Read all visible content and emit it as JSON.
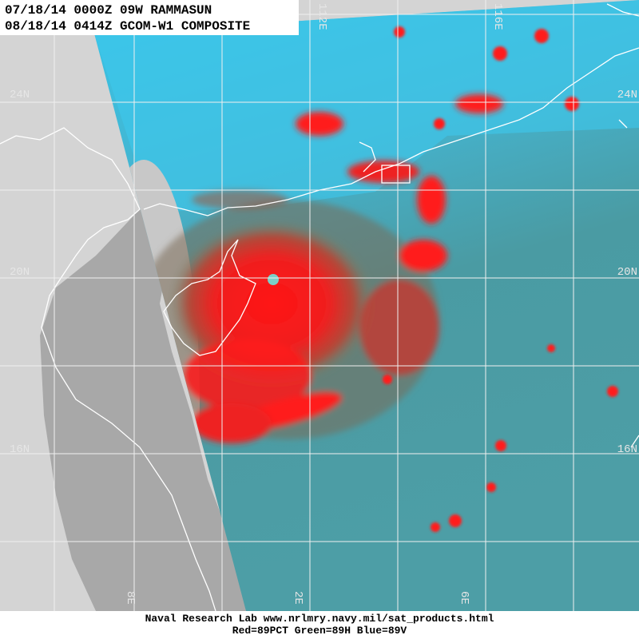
{
  "header": {
    "lines": [
      "07/18/14 0000Z 09W RAMMASUN",
      "08/18/14 0414Z GCOM-W1 COMPOSITE"
    ]
  },
  "grid": {
    "lat_left": [
      "24N",
      "20N",
      "16N"
    ],
    "lat_right": [
      "24N",
      "20N",
      "16N"
    ],
    "lon_top": [
      "112E",
      "116E"
    ],
    "lon_bottom": [
      "8E",
      "2E",
      "6E"
    ]
  },
  "footer": {
    "lines": [
      "Naval Research Lab  www.nrlmry.navy.mil/sat_products.html",
      "Red=89PCT  Green=89H  Blue=89V"
    ]
  }
}
